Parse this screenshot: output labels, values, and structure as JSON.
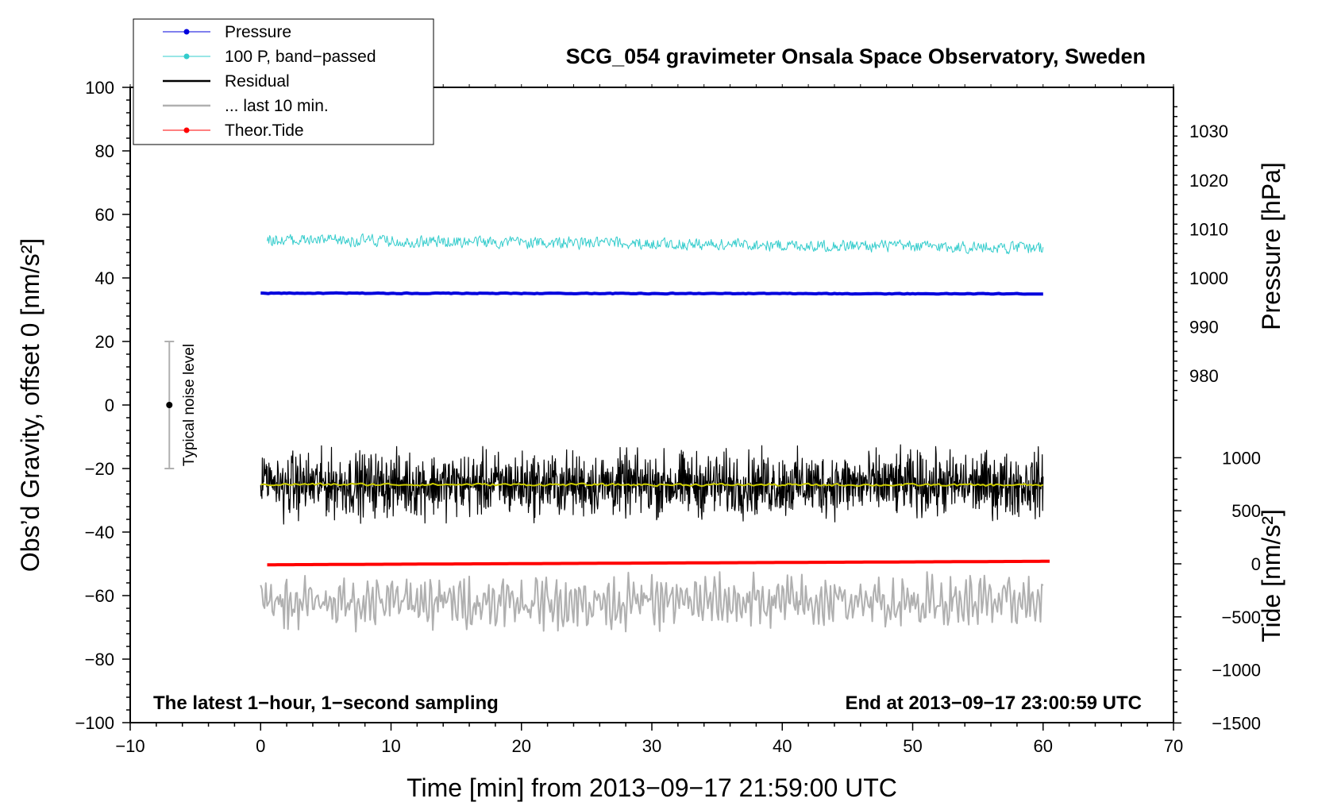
{
  "chart_data": {
    "type": "line",
    "title": "SCG_054 gravimeter Onsala Space Observatory, Sweden",
    "xlabel": "Time [min] from 2013−09−17 21:59:00 UTC",
    "ylabel_left": "Obs’d Gravity, offset 0 [nm/s²]",
    "ylabel_right_top": "Pressure [hPa]",
    "ylabel_right_bottom": "Tide [nm/s²]",
    "xlim": [
      -10,
      70
    ],
    "ylim": [
      -100,
      100
    ],
    "x_ticks": [
      "−10",
      "0",
      "10",
      "20",
      "30",
      "40",
      "50",
      "60",
      "70"
    ],
    "y_ticks": [
      "−100",
      "−80",
      "−60",
      "−40",
      "−20",
      "0",
      "20",
      "40",
      "60",
      "80",
      "100"
    ],
    "pressure_ticks": [
      "980",
      "990",
      "1000",
      "1010",
      "1020",
      "1030"
    ],
    "tide_ticks": [
      "−1500",
      "−1000",
      "−500",
      "0",
      "500",
      "1000"
    ],
    "annotation_left": "The latest 1−hour, 1−second sampling",
    "annotation_right": "End at 2013−09−17 23:00:59 UTC",
    "noise_label": "Typical noise level",
    "noise_bar": {
      "x": -7,
      "center": 0,
      "low": -20,
      "high": 20
    },
    "legend": [
      {
        "label": "Pressure",
        "color": "#0000dd",
        "marker": true,
        "style": "thin"
      },
      {
        "label": "100 P, band−passed",
        "color": "#33cccc",
        "marker": true,
        "style": "thin"
      },
      {
        "label": "Residual",
        "color": "#000000",
        "marker": false,
        "style": "thick"
      },
      {
        "label": "... last 10 min.",
        "color": "#b0b0b0",
        "marker": false,
        "style": "thick"
      },
      {
        "label": "Theor.Tide",
        "color": "#ff0000",
        "marker": true,
        "style": "thin"
      }
    ],
    "series": [
      {
        "name": "Pressure",
        "color": "#0000dd",
        "axis": "left",
        "x_range": [
          0,
          60
        ],
        "y_start": 35.2,
        "y_end": 35.0,
        "noise_amp": 0.15,
        "width": 4
      },
      {
        "name": "100 P, band−passed",
        "color": "#33cccc",
        "axis": "left",
        "x_range": [
          0.5,
          60
        ],
        "y_start": 52,
        "y_end": 49.5,
        "noise_amp": 2.5,
        "width": 1
      },
      {
        "name": "Residual",
        "color": "#000000",
        "axis": "left",
        "x_range": [
          0,
          60
        ],
        "y_start": -25,
        "y_end": -25,
        "noise_amp": 6,
        "width": 1.2
      },
      {
        "name": "Residual smoothed",
        "color": "#cccc00",
        "axis": "left",
        "x_range": [
          0,
          60
        ],
        "y_start": -25,
        "y_end": -25.2,
        "noise_amp": 0.5,
        "width": 2
      },
      {
        "name": "... last 10 min.",
        "color": "#b0b0b0",
        "axis": "left",
        "x_range": [
          0,
          60
        ],
        "y_start": -62,
        "y_end": -62,
        "noise_amp": 6,
        "width": 2
      },
      {
        "name": "Theor.Tide",
        "color": "#ff0000",
        "axis": "left",
        "x_range": [
          0.5,
          60.5
        ],
        "y_start": -50.3,
        "y_end": -49.2,
        "noise_amp": 0,
        "width": 4
      }
    ]
  }
}
